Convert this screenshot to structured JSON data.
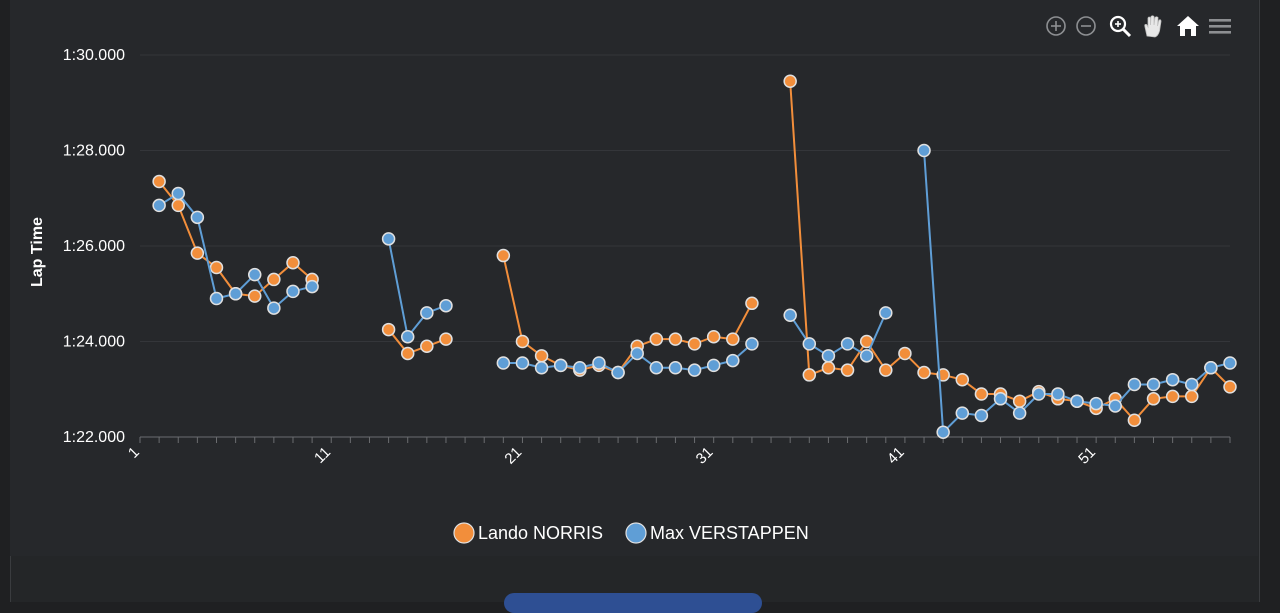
{
  "chart_data": {
    "type": "line",
    "title": "",
    "xlabel": "",
    "ylabel": "Lap Time",
    "ylim": [
      82,
      90
    ],
    "xlim": [
      1,
      58
    ],
    "y_ticks": [
      {
        "value": 82,
        "label": "1:22.000"
      },
      {
        "value": 84,
        "label": "1:24.000"
      },
      {
        "value": 86,
        "label": "1:26.000"
      },
      {
        "value": 88,
        "label": "1:28.000"
      },
      {
        "value": 90,
        "label": "1:30.000"
      }
    ],
    "x_tick_labels": [
      "1",
      "11",
      "21",
      "31",
      "41",
      "51"
    ],
    "legend_position": "bottom-center",
    "grid": true,
    "series": [
      {
        "name": "Lando NORRIS",
        "color": "#f28e3b",
        "values": [
          null,
          87.35,
          86.85,
          85.85,
          85.55,
          85.0,
          84.95,
          85.3,
          85.65,
          85.3,
          null,
          null,
          null,
          84.25,
          83.75,
          83.9,
          84.05,
          null,
          null,
          85.8,
          84.0,
          83.7,
          83.5,
          83.4,
          83.5,
          83.35,
          83.9,
          84.05,
          84.05,
          83.95,
          84.1,
          84.05,
          84.8,
          null,
          89.45,
          83.3,
          83.45,
          83.4,
          84.0,
          83.4,
          83.75,
          83.35,
          83.3,
          83.2,
          82.9,
          82.9,
          82.75,
          82.95,
          82.8,
          82.75,
          82.6,
          82.8,
          82.35,
          82.8,
          82.85,
          82.85,
          83.45,
          83.05
        ]
      },
      {
        "name": "Max VERSTAPPEN",
        "color": "#5f9ed6",
        "values": [
          null,
          86.85,
          87.1,
          86.6,
          84.9,
          85.0,
          85.4,
          84.7,
          85.05,
          85.15,
          null,
          null,
          null,
          86.15,
          84.1,
          84.6,
          84.75,
          null,
          null,
          83.55,
          83.55,
          83.45,
          83.5,
          83.45,
          83.55,
          83.35,
          83.75,
          83.45,
          83.45,
          83.4,
          83.5,
          83.6,
          83.95,
          null,
          84.55,
          83.95,
          83.7,
          83.95,
          83.7,
          84.6,
          null,
          88.0,
          82.1,
          82.5,
          82.45,
          82.8,
          82.5,
          82.9,
          82.9,
          82.75,
          82.7,
          82.65,
          83.1,
          83.1,
          83.2,
          83.1,
          83.45,
          83.55
        ]
      }
    ]
  },
  "toolbar": {
    "zoom_in": "zoom-in",
    "zoom_out": "zoom-out",
    "selection_zoom": "selection-zoom",
    "pan": "pan",
    "reset": "reset-zoom",
    "menu": "menu"
  }
}
